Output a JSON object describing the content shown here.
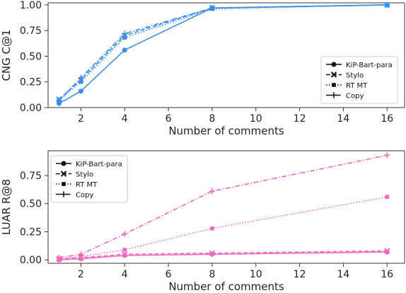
{
  "chart_data": [
    {
      "type": "line",
      "color": "#3a8fe8",
      "x": [
        1,
        2,
        4,
        8,
        16
      ],
      "xlabel": "Number of comments",
      "ylabel": "CNG C@1",
      "xlim": [
        0.5,
        16.8
      ],
      "ylim": [
        0.0,
        1.02
      ],
      "xticks": [
        2,
        4,
        6,
        8,
        10,
        12,
        14,
        16
      ],
      "yticks": [
        0.0,
        0.25,
        0.5,
        0.75,
        1.0
      ],
      "ytick_labels": [
        "0.00",
        "0.25",
        "0.50",
        "0.75",
        "1.00"
      ],
      "legend_position": "lower-right",
      "series": [
        {
          "name": "KiP-Bart-para",
          "dash": "solid",
          "marker": "circle",
          "values": [
            0.04,
            0.16,
            0.56,
            0.97,
            1.0
          ]
        },
        {
          "name": "Stylo",
          "dash": "dashed",
          "marker": "x",
          "values": [
            0.08,
            0.27,
            0.7,
            0.97,
            1.0
          ]
        },
        {
          "name": "RT MT",
          "dash": "dotted",
          "marker": "square",
          "values": [
            0.07,
            0.25,
            0.68,
            0.96,
            1.0
          ]
        },
        {
          "name": "Copy",
          "dash": "dashdot",
          "marker": "plus",
          "values": [
            0.07,
            0.29,
            0.72,
            0.97,
            1.0
          ]
        }
      ]
    },
    {
      "type": "line",
      "color": "#f06ac0",
      "x": [
        1,
        2,
        4,
        8,
        16
      ],
      "xlabel": "Number of comments",
      "ylabel": "LUAR R@8",
      "xlim": [
        0.5,
        16.8
      ],
      "ylim": [
        -0.03,
        0.97
      ],
      "xticks": [
        2,
        4,
        6,
        8,
        10,
        12,
        14,
        16
      ],
      "yticks": [
        0.0,
        0.25,
        0.5,
        0.75
      ],
      "ytick_labels": [
        "0.00",
        "0.25",
        "0.50",
        "0.75"
      ],
      "legend_position": "upper-left",
      "series": [
        {
          "name": "KiP-Bart-para",
          "dash": "solid",
          "marker": "circle",
          "values": [
            0.0,
            0.01,
            0.04,
            0.05,
            0.07
          ]
        },
        {
          "name": "Stylo",
          "dash": "dashed",
          "marker": "x",
          "values": [
            0.01,
            0.02,
            0.05,
            0.06,
            0.08
          ]
        },
        {
          "name": "RT MT",
          "dash": "dotted",
          "marker": "square",
          "values": [
            0.01,
            0.03,
            0.09,
            0.28,
            0.56
          ]
        },
        {
          "name": "Copy",
          "dash": "dashdot",
          "marker": "plus",
          "values": [
            0.02,
            0.05,
            0.23,
            0.61,
            0.93
          ]
        }
      ]
    }
  ]
}
